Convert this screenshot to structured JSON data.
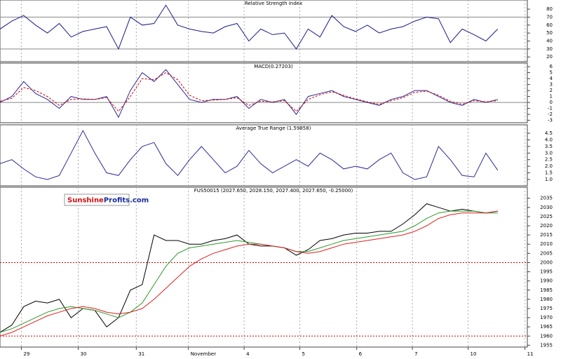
{
  "logo": {
    "first": "Sunshine",
    "second": "Profits.com"
  },
  "chart_data": [
    {
      "type": "line",
      "title": "Relative Strength Index",
      "x": [
        0,
        1,
        2,
        3,
        4,
        5,
        6,
        7,
        8,
        9,
        10,
        11,
        12,
        13,
        14,
        15,
        16,
        17,
        18,
        19,
        20,
        21,
        22,
        23,
        24,
        25,
        26,
        27,
        28,
        29,
        30,
        31,
        32,
        33,
        34,
        35,
        36,
        37,
        38,
        39,
        40,
        41,
        42
      ],
      "xlim": [
        0,
        44.5
      ],
      "ylim": [
        14,
        91.5
      ],
      "yticks": [
        20,
        30,
        40,
        50,
        60,
        70,
        80
      ],
      "hlines": [
        30,
        70
      ],
      "hline_color": "#888888",
      "hline_dash": false,
      "series": [
        {
          "color": "#1a1a8c",
          "dash": false,
          "values": [
            55,
            65,
            72,
            60,
            50,
            62,
            45,
            52,
            55,
            58,
            30,
            70,
            60,
            62,
            85,
            60,
            55,
            52,
            50,
            58,
            62,
            40,
            55,
            48,
            50,
            30,
            55,
            45,
            72,
            58,
            52,
            60,
            50,
            55,
            58,
            65,
            70,
            68,
            38,
            55,
            48,
            40,
            55
          ]
        }
      ]
    },
    {
      "type": "line",
      "title": "MACD(0.27203)",
      "x": [
        0,
        1,
        2,
        3,
        4,
        5,
        6,
        7,
        8,
        9,
        10,
        11,
        12,
        13,
        14,
        15,
        16,
        17,
        18,
        19,
        20,
        21,
        22,
        23,
        24,
        25,
        26,
        27,
        28,
        29,
        30,
        31,
        32,
        33,
        34,
        35,
        36,
        37,
        38,
        39,
        40,
        41,
        42
      ],
      "xlim": [
        0,
        44.5
      ],
      "ylim": [
        -3.4,
        6.6
      ],
      "yticks": [
        -3,
        -2,
        -1,
        0,
        1,
        2,
        3,
        4,
        5,
        6
      ],
      "hlines": [
        0
      ],
      "hline_color": "#888888",
      "hline_dash": false,
      "series": [
        {
          "color": "#2a2a9a",
          "dash": false,
          "values": [
            0,
            1,
            3.5,
            1.5,
            0.5,
            -1,
            1,
            0.5,
            0.5,
            1,
            -2.5,
            2,
            5,
            3.5,
            5.5,
            3,
            0.5,
            0,
            0.5,
            0.5,
            1,
            -1,
            0.5,
            0,
            0.5,
            -2,
            1,
            1.5,
            2,
            1,
            0.5,
            0,
            -0.5,
            0.5,
            1,
            2,
            2,
            1,
            0,
            -0.5,
            0.5,
            0,
            0.5
          ]
        },
        {
          "color": "#cc0000",
          "dash": true,
          "values": [
            0.2,
            0.7,
            2.5,
            2,
            1,
            -0.5,
            0.5,
            0.6,
            0.5,
            0.8,
            -1.5,
            1,
            4,
            3.8,
            5,
            3.8,
            1.2,
            0.3,
            0.4,
            0.5,
            0.8,
            -0.5,
            0.2,
            0.1,
            0.3,
            -1.5,
            0.5,
            1.3,
            1.8,
            1.2,
            0.6,
            0.1,
            -0.3,
            0.3,
            0.8,
            1.7,
            1.9,
            1.2,
            0.2,
            -0.3,
            0.3,
            0.1,
            0.3
          ]
        }
      ]
    },
    {
      "type": "line",
      "title": "Average True Range (1.59858)",
      "x": [
        0,
        1,
        2,
        3,
        4,
        5,
        6,
        7,
        8,
        9,
        10,
        11,
        12,
        13,
        14,
        15,
        16,
        17,
        18,
        19,
        20,
        21,
        22,
        23,
        24,
        25,
        26,
        27,
        28,
        29,
        30,
        31,
        32,
        33,
        34,
        35,
        36,
        37,
        38,
        39,
        40,
        41,
        42
      ],
      "xlim": [
        0,
        44.5
      ],
      "ylim": [
        0.52,
        5.14
      ],
      "yticks": [
        {
          "value": 1,
          "label": "1.0"
        },
        1.5,
        {
          "value": 2,
          "label": "2.0"
        },
        2.5,
        {
          "value": 3,
          "label": "3.0"
        },
        3.5,
        {
          "value": 4,
          "label": "4.0"
        },
        4.5
      ],
      "series": [
        {
          "color": "#2a2a9a",
          "dash": false,
          "values": [
            2.2,
            2.5,
            1.8,
            1.2,
            1.0,
            1.3,
            3.0,
            4.7,
            3.0,
            1.5,
            1.3,
            2.5,
            3.5,
            3.8,
            2.2,
            1.3,
            2.5,
            3.5,
            2.5,
            1.5,
            2.0,
            3.2,
            2.2,
            1.5,
            2.0,
            2.5,
            2.0,
            3.0,
            2.5,
            1.8,
            2.0,
            1.8,
            2.5,
            3.0,
            1.5,
            1.0,
            1.2,
            3.5,
            2.5,
            1.3,
            1.2,
            3.0,
            1.7
          ]
        }
      ]
    },
    {
      "type": "line",
      "title": "FUS50015 (2027.650, 2028.150, 2027.400, 2027.650, -0.25000)",
      "x": [
        0,
        1,
        2,
        3,
        4,
        5,
        6,
        7,
        8,
        9,
        10,
        11,
        12,
        13,
        14,
        15,
        16,
        17,
        18,
        19,
        20,
        21,
        22,
        23,
        24,
        25,
        26,
        27,
        28,
        29,
        30,
        31,
        32,
        33,
        34,
        35,
        36,
        37,
        38,
        39,
        40,
        41,
        42
      ],
      "xlim": [
        0,
        44.5
      ],
      "ylim": [
        1954,
        2041
      ],
      "yticks": [
        1955,
        1960,
        1965,
        1970,
        1975,
        1980,
        1985,
        1990,
        1995,
        2000,
        2005,
        2010,
        2015,
        2020,
        2025,
        2030,
        2035
      ],
      "hlines": [
        2000,
        1960
      ],
      "hline_color": "#cc0000",
      "hline_dash": true,
      "xticks": [
        {
          "value": 1.8,
          "label": "29"
        },
        {
          "value": 6.6,
          "label": "30"
        },
        {
          "value": 11.5,
          "label": "31"
        },
        {
          "value": 15.9,
          "label": "November"
        },
        {
          "value": 20.6,
          "label": "4"
        },
        {
          "value": 25.3,
          "label": "5"
        },
        {
          "value": 30.1,
          "label": "6"
        },
        {
          "value": 34.8,
          "label": "7"
        },
        {
          "value": 39.5,
          "label": "10"
        },
        {
          "value": 44.3,
          "label": "11"
        }
      ],
      "series": [
        {
          "color": "#000000",
          "dash": false,
          "values": [
            1962,
            1966,
            1976,
            1979,
            1978,
            1980,
            1970,
            1975,
            1974,
            1965,
            1970,
            1985,
            1988,
            2015,
            2012,
            2012,
            2010,
            2010,
            2012,
            2013,
            2015,
            2010,
            2009,
            2009,
            2008,
            2004,
            2007,
            2012,
            2013,
            2015,
            2016,
            2016,
            2017,
            2017,
            2021,
            2026,
            2032,
            2030,
            2028,
            2029,
            2028,
            2027,
            2028
          ]
        },
        {
          "color": "#2a9a2a",
          "dash": false,
          "values": [
            1962,
            1964,
            1967,
            1970,
            1973,
            1975,
            1976,
            1975,
            1974,
            1972,
            1970,
            1973,
            1978,
            1988,
            1998,
            2005,
            2008,
            2009,
            2010,
            2011,
            2012,
            2011,
            2010,
            2009,
            2008,
            2006,
            2006,
            2008,
            2010,
            2012,
            2013,
            2014,
            2015,
            2016,
            2017,
            2020,
            2024,
            2027,
            2028,
            2028,
            2028,
            2027,
            2027
          ]
        },
        {
          "color": "#e02020",
          "dash": false,
          "values": [
            1960,
            1962,
            1965,
            1968,
            1971,
            1973,
            1975,
            1976,
            1975,
            1973,
            1972,
            1973,
            1975,
            1980,
            1986,
            1992,
            1998,
            2002,
            2005,
            2007,
            2009,
            2010,
            2010,
            2009,
            2008,
            2006,
            2005,
            2006,
            2008,
            2010,
            2011,
            2012,
            2013,
            2014,
            2015,
            2017,
            2020,
            2024,
            2026,
            2027,
            2027,
            2027,
            2028
          ]
        }
      ]
    }
  ]
}
